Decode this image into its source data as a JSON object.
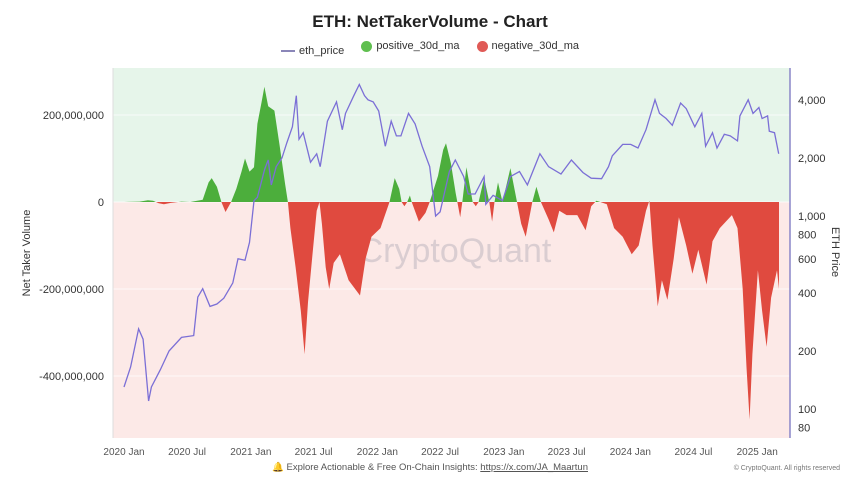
{
  "chart_data": {
    "type": "area",
    "title": "ETH: NetTakerVolume - Chart",
    "legend": [
      {
        "name": "eth_price",
        "color": "#7b6fd6",
        "shape": "line"
      },
      {
        "name": "positive_30d_ma",
        "color": "#4cae4c",
        "shape": "dot"
      },
      {
        "name": "negative_30d_ma",
        "color": "#e04a3f",
        "shape": "dot"
      }
    ],
    "legend_placement": "top-center",
    "ylabel_left": "Net Taker Volume",
    "ylabel_right": "ETH Price",
    "y_left_ticks": [
      "200,000,000",
      "0",
      "-200,000,000",
      "-400,000,000"
    ],
    "y_left_tick_values": [
      200000000,
      0,
      -200000000,
      -400000000
    ],
    "y_right_scale": "log",
    "y_right_ticks": [
      "4,000",
      "2,000",
      "1,000",
      "800",
      "600",
      "400",
      "200",
      "100",
      "80"
    ],
    "y_right_tick_values": [
      4000,
      2000,
      1000,
      800,
      600,
      400,
      200,
      100,
      80
    ],
    "x_ticks": [
      "2020 Jan",
      "2020 Jul",
      "2021 Jan",
      "2021 Jul",
      "2022 Jan",
      "2022 Jul",
      "2023 Jan",
      "2023 Jul",
      "2024 Jan",
      "2024 Jul",
      "2025 Jan"
    ],
    "x_tick_dates": [
      "2020-01-01",
      "2020-07-01",
      "2021-01-01",
      "2021-07-01",
      "2022-01-01",
      "2022-07-01",
      "2023-01-01",
      "2023-07-01",
      "2024-01-01",
      "2024-07-01",
      "2025-01-01"
    ],
    "background_zones": {
      "positive": "#e6f5ea",
      "negative": "#fce9e7"
    },
    "grid": true,
    "net_taker_volume_30d_ma": {
      "unit": "USD",
      "points": [
        [
          "2020-01-01",
          0
        ],
        [
          "2020-02-15",
          1000000
        ],
        [
          "2020-03-10",
          4000000
        ],
        [
          "2020-03-25",
          3000000
        ],
        [
          "2020-04-10",
          -3000000
        ],
        [
          "2020-04-25",
          -5000000
        ],
        [
          "2020-05-15",
          -2000000
        ],
        [
          "2020-06-15",
          1000000
        ],
        [
          "2020-07-10",
          0
        ],
        [
          "2020-08-15",
          5000000
        ],
        [
          "2020-09-01",
          45000000
        ],
        [
          "2020-09-10",
          55000000
        ],
        [
          "2020-09-25",
          35000000
        ],
        [
          "2020-10-08",
          0
        ],
        [
          "2020-10-20",
          -23000000
        ],
        [
          "2020-11-05",
          0
        ],
        [
          "2020-11-20",
          30000000
        ],
        [
          "2020-12-05",
          70000000
        ],
        [
          "2020-12-15",
          100000000
        ],
        [
          "2020-12-28",
          70000000
        ],
        [
          "2021-01-10",
          80000000
        ],
        [
          "2021-01-20",
          180000000
        ],
        [
          "2021-02-01",
          230000000
        ],
        [
          "2021-02-09",
          265000000
        ],
        [
          "2021-02-20",
          220000000
        ],
        [
          "2021-03-10",
          210000000
        ],
        [
          "2021-03-25",
          130000000
        ],
        [
          "2021-04-10",
          40000000
        ],
        [
          "2021-04-18",
          0
        ],
        [
          "2021-04-25",
          -60000000
        ],
        [
          "2021-05-10",
          -150000000
        ],
        [
          "2021-05-25",
          -250000000
        ],
        [
          "2021-06-05",
          -350000000
        ],
        [
          "2021-06-15",
          -230000000
        ],
        [
          "2021-06-28",
          -120000000
        ],
        [
          "2021-07-10",
          -20000000
        ],
        [
          "2021-07-18",
          0
        ],
        [
          "2021-07-25",
          -50000000
        ],
        [
          "2021-08-05",
          -150000000
        ],
        [
          "2021-08-15",
          -200000000
        ],
        [
          "2021-08-28",
          -140000000
        ],
        [
          "2021-09-15",
          -120000000
        ],
        [
          "2021-10-10",
          -180000000
        ],
        [
          "2021-11-12",
          -215000000
        ],
        [
          "2021-11-28",
          -130000000
        ],
        [
          "2021-12-15",
          -80000000
        ],
        [
          "2022-01-10",
          -60000000
        ],
        [
          "2022-02-05",
          0
        ],
        [
          "2022-02-20",
          55000000
        ],
        [
          "2022-03-05",
          30000000
        ],
        [
          "2022-03-12",
          0
        ],
        [
          "2022-03-20",
          -10000000
        ],
        [
          "2022-03-28",
          0
        ],
        [
          "2022-04-05",
          15000000
        ],
        [
          "2022-04-10",
          0
        ],
        [
          "2022-05-01",
          -45000000
        ],
        [
          "2022-05-20",
          -25000000
        ],
        [
          "2022-06-01",
          0
        ],
        [
          "2022-06-25",
          60000000
        ],
        [
          "2022-07-10",
          120000000
        ],
        [
          "2022-07-18",
          135000000
        ],
        [
          "2022-08-01",
          90000000
        ],
        [
          "2022-08-15",
          20000000
        ],
        [
          "2022-08-28",
          -35000000
        ],
        [
          "2022-09-03",
          0
        ],
        [
          "2022-09-15",
          80000000
        ],
        [
          "2022-10-03",
          0
        ],
        [
          "2022-10-12",
          -10000000
        ],
        [
          "2022-10-20",
          0
        ],
        [
          "2022-11-05",
          55000000
        ],
        [
          "2022-11-20",
          0
        ],
        [
          "2022-11-28",
          -45000000
        ],
        [
          "2022-12-05",
          0
        ],
        [
          "2022-12-15",
          45000000
        ],
        [
          "2022-12-28",
          0
        ],
        [
          "2023-01-20",
          78000000
        ],
        [
          "2023-02-08",
          0
        ],
        [
          "2023-02-20",
          -50000000
        ],
        [
          "2023-03-05",
          -80000000
        ],
        [
          "2023-03-24",
          0
        ],
        [
          "2023-04-05",
          35000000
        ],
        [
          "2023-04-18",
          0
        ],
        [
          "2023-05-10",
          -40000000
        ],
        [
          "2023-05-25",
          -70000000
        ],
        [
          "2023-06-10",
          -20000000
        ],
        [
          "2023-07-01",
          -30000000
        ],
        [
          "2023-08-01",
          -30000000
        ],
        [
          "2023-08-25",
          -65000000
        ],
        [
          "2023-09-10",
          -10000000
        ],
        [
          "2023-09-25",
          3000000
        ],
        [
          "2023-10-25",
          -5000000
        ],
        [
          "2023-11-15",
          -60000000
        ],
        [
          "2023-12-10",
          -80000000
        ],
        [
          "2024-01-05",
          -120000000
        ],
        [
          "2024-01-25",
          -100000000
        ],
        [
          "2024-02-15",
          -20000000
        ],
        [
          "2024-02-25",
          3000000
        ],
        [
          "2024-03-05",
          -100000000
        ],
        [
          "2024-03-20",
          -240000000
        ],
        [
          "2024-04-01",
          -180000000
        ],
        [
          "2024-04-17",
          -225000000
        ],
        [
          "2024-05-05",
          -130000000
        ],
        [
          "2024-05-20",
          -35000000
        ],
        [
          "2024-06-10",
          -100000000
        ],
        [
          "2024-06-28",
          -165000000
        ],
        [
          "2024-07-15",
          -110000000
        ],
        [
          "2024-08-08",
          -190000000
        ],
        [
          "2024-08-25",
          -90000000
        ],
        [
          "2024-09-15",
          -60000000
        ],
        [
          "2024-10-20",
          -30000000
        ],
        [
          "2024-11-05",
          -60000000
        ],
        [
          "2024-11-20",
          -200000000
        ],
        [
          "2024-12-01",
          -380000000
        ],
        [
          "2024-12-10",
          -500000000
        ],
        [
          "2024-12-18",
          -350000000
        ],
        [
          "2025-01-03",
          -157000000
        ],
        [
          "2025-01-15",
          -250000000
        ],
        [
          "2025-01-28",
          -333000000
        ],
        [
          "2025-02-10",
          -220000000
        ],
        [
          "2025-02-27",
          -157000000
        ],
        [
          "2025-03-05",
          -200000000
        ]
      ]
    },
    "eth_price": {
      "unit": "USD",
      "points": [
        [
          "2020-01-01",
          130
        ],
        [
          "2020-01-20",
          165
        ],
        [
          "2020-02-12",
          260
        ],
        [
          "2020-02-25",
          230
        ],
        [
          "2020-03-12",
          110
        ],
        [
          "2020-03-20",
          130
        ],
        [
          "2020-04-15",
          160
        ],
        [
          "2020-05-10",
          200
        ],
        [
          "2020-06-15",
          235
        ],
        [
          "2020-07-20",
          240
        ],
        [
          "2020-08-01",
          380
        ],
        [
          "2020-08-15",
          420
        ],
        [
          "2020-09-05",
          340
        ],
        [
          "2020-09-25",
          350
        ],
        [
          "2020-10-15",
          375
        ],
        [
          "2020-11-10",
          450
        ],
        [
          "2020-11-25",
          600
        ],
        [
          "2020-12-15",
          590
        ],
        [
          "2020-12-28",
          730
        ],
        [
          "2021-01-10",
          1200
        ],
        [
          "2021-01-20",
          1250
        ],
        [
          "2021-02-10",
          1750
        ],
        [
          "2021-02-20",
          1950
        ],
        [
          "2021-03-01",
          1450
        ],
        [
          "2021-03-15",
          1800
        ],
        [
          "2021-04-01",
          2000
        ],
        [
          "2021-04-15",
          2400
        ],
        [
          "2021-05-01",
          2900
        ],
        [
          "2021-05-12",
          4200
        ],
        [
          "2021-05-20",
          2500
        ],
        [
          "2021-06-01",
          2700
        ],
        [
          "2021-06-22",
          1900
        ],
        [
          "2021-07-10",
          2100
        ],
        [
          "2021-07-20",
          1800
        ],
        [
          "2021-08-10",
          3100
        ],
        [
          "2021-09-05",
          3900
        ],
        [
          "2021-09-22",
          2800
        ],
        [
          "2021-10-01",
          3400
        ],
        [
          "2021-10-25",
          4200
        ],
        [
          "2021-11-10",
          4800
        ],
        [
          "2021-11-25",
          4200
        ],
        [
          "2021-12-05",
          4000
        ],
        [
          "2021-12-20",
          3900
        ],
        [
          "2022-01-05",
          3500
        ],
        [
          "2022-01-24",
          2300
        ],
        [
          "2022-02-10",
          3100
        ],
        [
          "2022-02-25",
          2600
        ],
        [
          "2022-03-10",
          2600
        ],
        [
          "2022-04-01",
          3400
        ],
        [
          "2022-04-20",
          3000
        ],
        [
          "2022-05-10",
          2300
        ],
        [
          "2022-06-01",
          1800
        ],
        [
          "2022-06-18",
          1000
        ],
        [
          "2022-07-01",
          1050
        ],
        [
          "2022-07-28",
          1700
        ],
        [
          "2022-08-14",
          1950
        ],
        [
          "2022-09-07",
          1600
        ],
        [
          "2022-09-20",
          1300
        ],
        [
          "2022-10-10",
          1300
        ],
        [
          "2022-11-05",
          1600
        ],
        [
          "2022-11-10",
          1150
        ],
        [
          "2022-12-01",
          1280
        ],
        [
          "2022-12-28",
          1200
        ],
        [
          "2023-01-20",
          1600
        ],
        [
          "2023-02-15",
          1700
        ],
        [
          "2023-03-10",
          1450
        ],
        [
          "2023-04-15",
          2100
        ],
        [
          "2023-05-10",
          1800
        ],
        [
          "2023-06-15",
          1650
        ],
        [
          "2023-07-15",
          1950
        ],
        [
          "2023-08-17",
          1680
        ],
        [
          "2023-09-10",
          1570
        ],
        [
          "2023-10-10",
          1560
        ],
        [
          "2023-10-30",
          1800
        ],
        [
          "2023-11-10",
          2050
        ],
        [
          "2023-12-10",
          2350
        ],
        [
          "2024-01-02",
          2350
        ],
        [
          "2024-01-23",
          2250
        ],
        [
          "2024-02-15",
          2800
        ],
        [
          "2024-03-12",
          4000
        ],
        [
          "2024-03-25",
          3400
        ],
        [
          "2024-04-13",
          3200
        ],
        [
          "2024-05-01",
          2950
        ],
        [
          "2024-05-25",
          3850
        ],
        [
          "2024-06-10",
          3600
        ],
        [
          "2024-07-05",
          2900
        ],
        [
          "2024-07-25",
          3400
        ],
        [
          "2024-08-05",
          2300
        ],
        [
          "2024-08-25",
          2700
        ],
        [
          "2024-09-07",
          2250
        ],
        [
          "2024-09-28",
          2650
        ],
        [
          "2024-10-15",
          2600
        ],
        [
          "2024-11-05",
          2450
        ],
        [
          "2024-11-12",
          3300
        ],
        [
          "2024-12-06",
          4000
        ],
        [
          "2024-12-20",
          3400
        ],
        [
          "2025-01-06",
          3650
        ],
        [
          "2025-01-15",
          3200
        ],
        [
          "2025-01-31",
          3300
        ],
        [
          "2025-02-05",
          2750
        ],
        [
          "2025-02-20",
          2700
        ],
        [
          "2025-03-04",
          2100
        ]
      ]
    }
  },
  "watermark": "CryptoQuant",
  "footer": {
    "text": "Explore Actionable & Free On-Chain Insights: ",
    "link": "https://x.com/JA_Maartun",
    "icon": "bell-icon",
    "copyright": "© CryptoQuant. All rights reserved"
  }
}
